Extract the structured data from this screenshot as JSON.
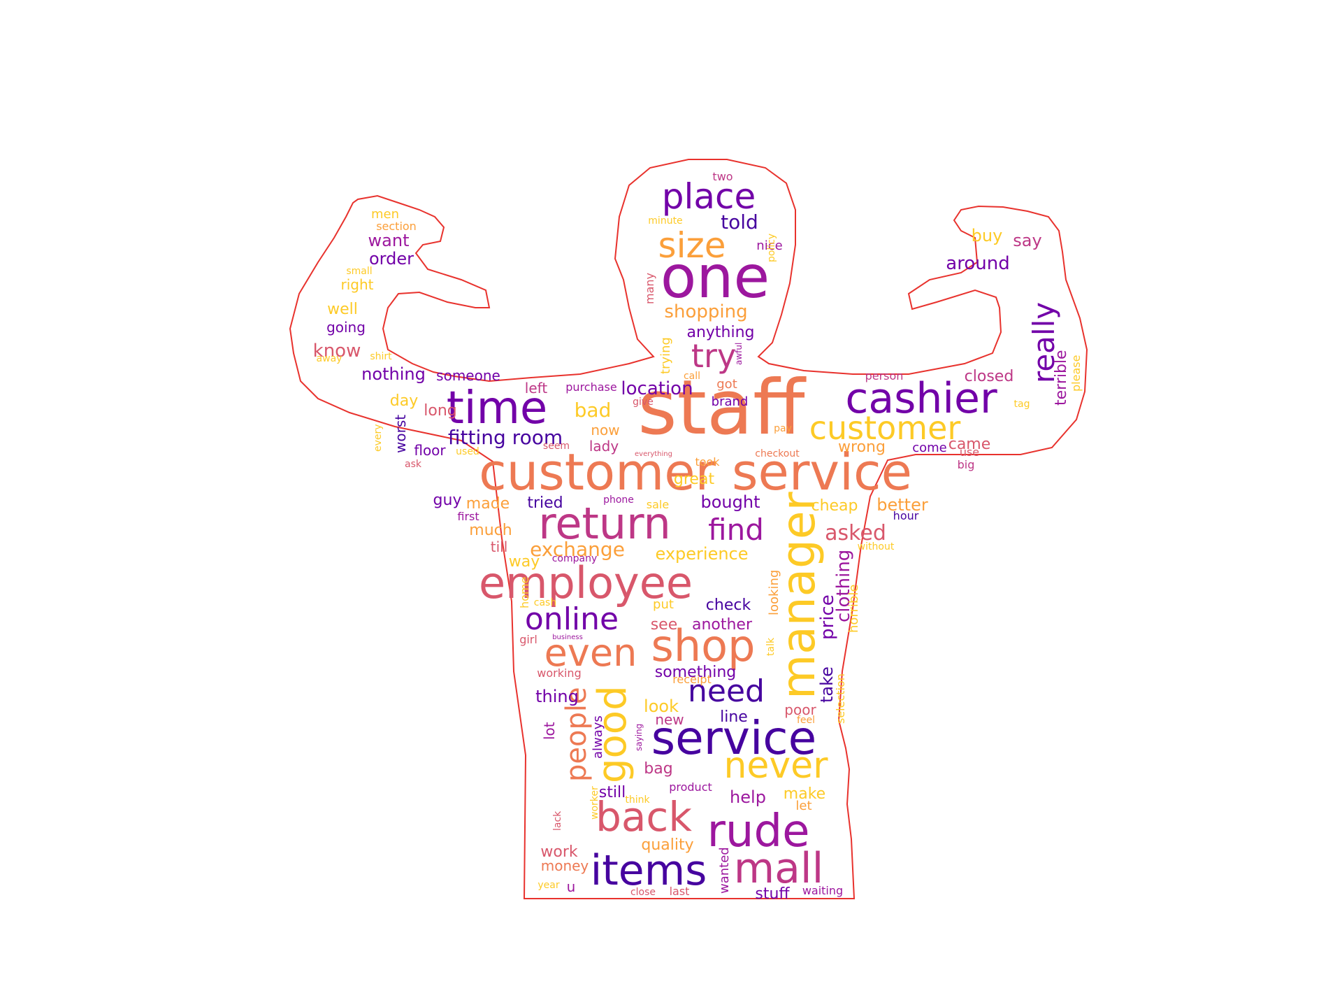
{
  "palette": [
    "#f0f921",
    "#fdca26",
    "#fb9f3a",
    "#ed7953",
    "#d8576b",
    "#bd3786",
    "#9c179e",
    "#7201a8",
    "#46039f"
  ],
  "outline_color": "#e8322d",
  "words": [
    {
      "text": "staff",
      "color": "#ed7953"
    },
    {
      "text": "customer service",
      "color": "#ed7953"
    },
    {
      "text": "one",
      "color": "#9c179e"
    },
    {
      "text": "time",
      "color": "#7201a8"
    },
    {
      "text": "cashier",
      "color": "#7201a8"
    },
    {
      "text": "customer",
      "color": "#fdca26"
    },
    {
      "text": "return",
      "color": "#bd3786"
    },
    {
      "text": "employee",
      "color": "#d8576b"
    },
    {
      "text": "manager",
      "color": "#fdca26"
    },
    {
      "text": "even",
      "color": "#ed7953"
    },
    {
      "text": "shop",
      "color": "#ed7953"
    },
    {
      "text": "service",
      "color": "#46039f"
    },
    {
      "text": "rude",
      "color": "#9c179e"
    },
    {
      "text": "items",
      "color": "#46039f"
    },
    {
      "text": "mall",
      "color": "#bd3786"
    },
    {
      "text": "back",
      "color": "#d8576b"
    },
    {
      "text": "never",
      "color": "#fdca26"
    },
    {
      "text": "good",
      "color": "#fdca26"
    },
    {
      "text": "people",
      "color": "#ed7953"
    },
    {
      "text": "place",
      "color": "#7201a8"
    },
    {
      "text": "size",
      "color": "#fb9f3a"
    },
    {
      "text": "try",
      "color": "#bd3786"
    },
    {
      "text": "really",
      "color": "#7201a8"
    },
    {
      "text": "online",
      "color": "#7201a8"
    },
    {
      "text": "find",
      "color": "#9c179e"
    },
    {
      "text": "need",
      "color": "#46039f"
    },
    {
      "text": "fitting room",
      "color": "#46039f"
    },
    {
      "text": "exchange",
      "color": "#fb9f3a"
    },
    {
      "text": "asked",
      "color": "#d8576b"
    },
    {
      "text": "location",
      "color": "#7201a8"
    },
    {
      "text": "shopping",
      "color": "#fb9f3a"
    },
    {
      "text": "told",
      "color": "#46039f"
    },
    {
      "text": "price",
      "color": "#7201a8"
    },
    {
      "text": "clothing",
      "color": "#9c179e"
    },
    {
      "text": "take",
      "color": "#46039f"
    },
    {
      "text": "bad",
      "color": "#fdca26"
    },
    {
      "text": "better",
      "color": "#fb9f3a"
    },
    {
      "text": "want",
      "color": "#9c179e"
    },
    {
      "text": "order",
      "color": "#7201a8"
    },
    {
      "text": "buy",
      "color": "#fdca26"
    },
    {
      "text": "say",
      "color": "#bd3786"
    },
    {
      "text": "around",
      "color": "#7201a8"
    },
    {
      "text": "nothing",
      "color": "#7201a8"
    },
    {
      "text": "know",
      "color": "#d8576b"
    },
    {
      "text": "anything",
      "color": "#7201a8"
    },
    {
      "text": "experience",
      "color": "#fdca26"
    },
    {
      "text": "terrible",
      "color": "#9c179e"
    },
    {
      "text": "closed",
      "color": "#bd3786"
    },
    {
      "text": "came",
      "color": "#d8576b"
    },
    {
      "text": "wrong",
      "color": "#fb9f3a"
    },
    {
      "text": "bought",
      "color": "#7201a8"
    },
    {
      "text": "tried",
      "color": "#46039f"
    },
    {
      "text": "made",
      "color": "#fb9f3a"
    },
    {
      "text": "much",
      "color": "#fb9f3a"
    },
    {
      "text": "guy",
      "color": "#7201a8"
    },
    {
      "text": "great",
      "color": "#fdca26"
    },
    {
      "text": "cheap",
      "color": "#fdca26"
    },
    {
      "text": "another",
      "color": "#9c179e"
    },
    {
      "text": "check",
      "color": "#46039f"
    },
    {
      "text": "see",
      "color": "#d8576b"
    },
    {
      "text": "something",
      "color": "#7201a8"
    },
    {
      "text": "thing",
      "color": "#7201a8"
    },
    {
      "text": "look",
      "color": "#fdca26"
    },
    {
      "text": "line",
      "color": "#46039f"
    },
    {
      "text": "new",
      "color": "#bd3786"
    },
    {
      "text": "poor",
      "color": "#d8576b"
    },
    {
      "text": "help",
      "color": "#9c179e"
    },
    {
      "text": "make",
      "color": "#fdca26"
    },
    {
      "text": "still",
      "color": "#7201a8"
    },
    {
      "text": "quality",
      "color": "#fb9f3a"
    },
    {
      "text": "stuff",
      "color": "#7201a8"
    },
    {
      "text": "money",
      "color": "#ed7953"
    },
    {
      "text": "work",
      "color": "#d8576b"
    },
    {
      "text": "bag",
      "color": "#bd3786"
    },
    {
      "text": "way",
      "color": "#fdca26"
    },
    {
      "text": "till",
      "color": "#d8576b"
    },
    {
      "text": "lady",
      "color": "#bd3786"
    },
    {
      "text": "now",
      "color": "#fb9f3a"
    },
    {
      "text": "long",
      "color": "#d8576b"
    },
    {
      "text": "day",
      "color": "#fdca26"
    },
    {
      "text": "worst",
      "color": "#46039f"
    },
    {
      "text": "floor",
      "color": "#7201a8"
    },
    {
      "text": "left",
      "color": "#bd3786"
    },
    {
      "text": "someone",
      "color": "#7201a8"
    },
    {
      "text": "well",
      "color": "#fdca26"
    },
    {
      "text": "going",
      "color": "#7201a8"
    },
    {
      "text": "right",
      "color": "#fdca26"
    },
    {
      "text": "men",
      "color": "#fdca26"
    },
    {
      "text": "section",
      "color": "#fb9f3a"
    },
    {
      "text": "two",
      "color": "#bd3786"
    },
    {
      "text": "nice",
      "color": "#9c179e"
    },
    {
      "text": "got",
      "color": "#ed7953"
    },
    {
      "text": "brand",
      "color": "#7201a8"
    },
    {
      "text": "give",
      "color": "#d8576b"
    },
    {
      "text": "purchase",
      "color": "#9c179e"
    },
    {
      "text": "come",
      "color": "#7201a8"
    },
    {
      "text": "use",
      "color": "#d8576b"
    },
    {
      "text": "big",
      "color": "#bd3786"
    },
    {
      "text": "person",
      "color": "#bd3786"
    },
    {
      "text": "please",
      "color": "#fdca26"
    },
    {
      "text": "tag",
      "color": "#fdca26"
    },
    {
      "text": "trying",
      "color": "#fdca26"
    },
    {
      "text": "many",
      "color": "#d8576b"
    },
    {
      "text": "policy",
      "color": "#fdca26"
    },
    {
      "text": "minute",
      "color": "#fdca26"
    },
    {
      "text": "awful",
      "color": "#9c179e"
    },
    {
      "text": "call",
      "color": "#fb9f3a"
    },
    {
      "text": "pay",
      "color": "#fb9f3a"
    },
    {
      "text": "checkout",
      "color": "#ed7953"
    },
    {
      "text": "everything",
      "color": "#d8576b"
    },
    {
      "text": "seem",
      "color": "#d8576b"
    },
    {
      "text": "used",
      "color": "#fdca26"
    },
    {
      "text": "ask",
      "color": "#d8576b"
    },
    {
      "text": "took",
      "color": "#fb9f3a"
    },
    {
      "text": "phone",
      "color": "#9c179e"
    },
    {
      "text": "sale",
      "color": "#fdca26"
    },
    {
      "text": "first",
      "color": "#9c179e"
    },
    {
      "text": "hour",
      "color": "#46039f"
    },
    {
      "text": "without",
      "color": "#fdca26"
    },
    {
      "text": "company",
      "color": "#9c179e"
    },
    {
      "text": "looking",
      "color": "#fb9f3a"
    },
    {
      "text": "horrible",
      "color": "#fdca26"
    },
    {
      "text": "selection",
      "color": "#fdca26"
    },
    {
      "text": "put",
      "color": "#fdca26"
    },
    {
      "text": "home",
      "color": "#fdca26"
    },
    {
      "text": "cash",
      "color": "#fdca26"
    },
    {
      "text": "girl",
      "color": "#d8576b"
    },
    {
      "text": "business",
      "color": "#9c179e"
    },
    {
      "text": "talk",
      "color": "#fdca26"
    },
    {
      "text": "receipt",
      "color": "#fb9f3a"
    },
    {
      "text": "working",
      "color": "#d8576b"
    },
    {
      "text": "feel",
      "color": "#fb9f3a"
    },
    {
      "text": "lot",
      "color": "#9c179e"
    },
    {
      "text": "always",
      "color": "#7201a8"
    },
    {
      "text": "saying",
      "color": "#9c179e"
    },
    {
      "text": "product",
      "color": "#9c179e"
    },
    {
      "text": "think",
      "color": "#fdca26"
    },
    {
      "text": "let",
      "color": "#fb9f3a"
    },
    {
      "text": "worker",
      "color": "#fdca26"
    },
    {
      "text": "lack",
      "color": "#d8576b"
    },
    {
      "text": "wanted",
      "color": "#9c179e"
    },
    {
      "text": "year",
      "color": "#fdca26"
    },
    {
      "text": "u",
      "color": "#9c179e"
    },
    {
      "text": "close",
      "color": "#d8576b"
    },
    {
      "text": "last",
      "color": "#d8576b"
    },
    {
      "text": "waiting",
      "color": "#9c179e"
    },
    {
      "text": "small",
      "color": "#fdca26"
    },
    {
      "text": "shirt",
      "color": "#fdca26"
    },
    {
      "text": "away",
      "color": "#fdca26"
    },
    {
      "text": "every",
      "color": "#fdca26"
    }
  ]
}
